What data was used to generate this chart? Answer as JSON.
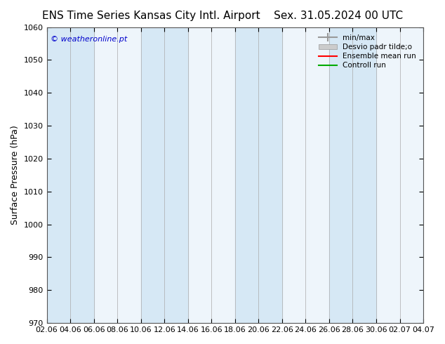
{
  "title": "ENS Time Series Kansas City Intl. Airport",
  "title_right": "Sex. 31.05.2024 00 UTC",
  "ylabel": "Surface Pressure (hPa)",
  "ylim": [
    970,
    1060
  ],
  "yticks": [
    970,
    980,
    990,
    1000,
    1010,
    1020,
    1030,
    1040,
    1050,
    1060
  ],
  "xtick_labels": [
    "02.06",
    "04.06",
    "06.06",
    "08.06",
    "10.06",
    "12.06",
    "14.06",
    "16.06",
    "18.06",
    "20.06",
    "22.06",
    "24.06",
    "26.06",
    "28.06",
    "30.06",
    "02.07",
    "04.07"
  ],
  "n_xticks": 17,
  "copyright_text": "© weatheronline.pt",
  "legend_entries": [
    "min/max",
    "Desvio padr tilde;o",
    "Ensemble mean run",
    "Controll run"
  ],
  "shaded_band_color": "#d6e8f5",
  "background_color": "#ffffff",
  "plot_bg_color": "#eef5fb",
  "title_fontsize": 11,
  "axis_fontsize": 9,
  "tick_fontsize": 8,
  "copyright_color": "#0000cc",
  "shaded_tick_starts": [
    0,
    1,
    4,
    5,
    8,
    9,
    12,
    13,
    16
  ]
}
